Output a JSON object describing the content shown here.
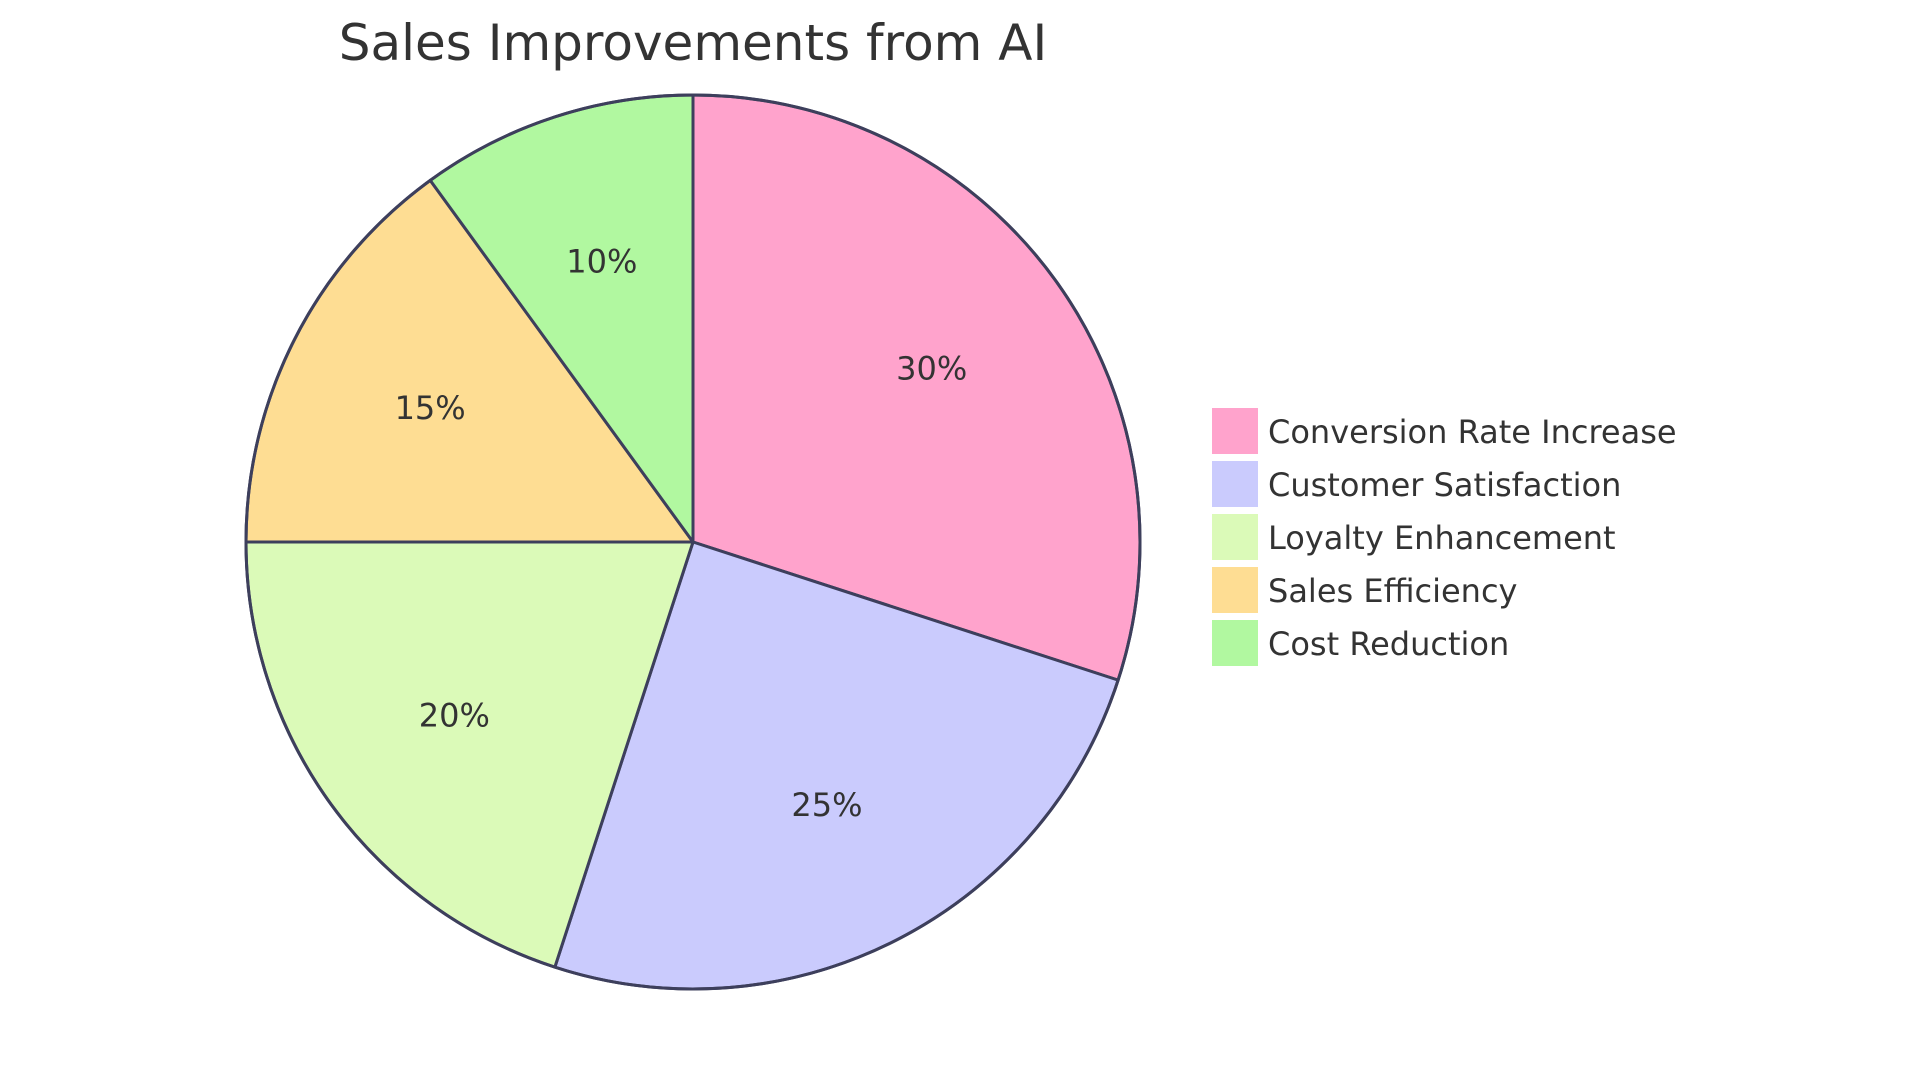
{
  "chart_data": {
    "type": "pie",
    "title": "Sales Improvements from AI",
    "slices": [
      {
        "name": "Conversion Rate Increase",
        "value": 30,
        "label": "30%",
        "color": "#FFA3CC"
      },
      {
        "name": "Customer Satisfaction",
        "value": 25,
        "label": "25%",
        "color": "#CACBFD"
      },
      {
        "name": "Loyalty Enhancement",
        "value": 20,
        "label": "20%",
        "color": "#DBFAB8"
      },
      {
        "name": "Sales Efficiency",
        "value": 15,
        "label": "15%",
        "color": "#FEDD93"
      },
      {
        "name": "Cost Reduction",
        "value": 10,
        "label": "10%",
        "color": "#B1F8A0"
      }
    ],
    "legend_position": "right",
    "start_angle": "top",
    "direction": "clockwise"
  }
}
